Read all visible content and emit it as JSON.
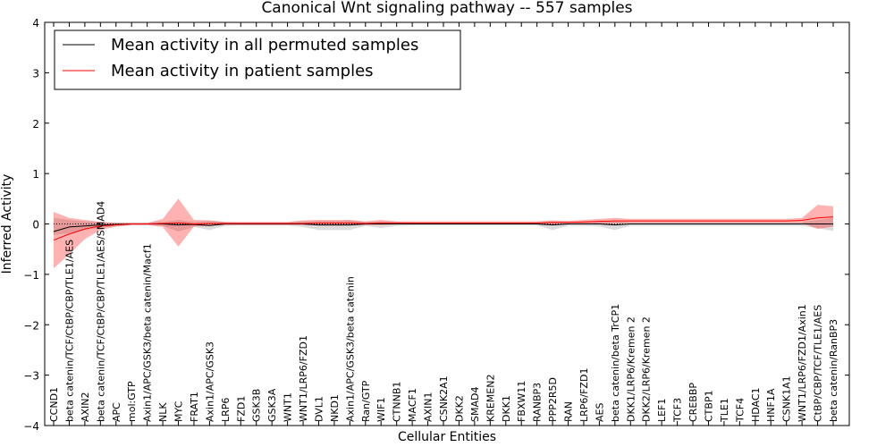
{
  "chart_data": {
    "type": "line",
    "title": "Canonical Wnt signaling pathway -- 557 samples",
    "xlabel": "Cellular Entities",
    "ylabel": "Inferred Activity",
    "ylim": [
      -4,
      4
    ],
    "yticks": [
      -4,
      -3,
      -2,
      -1,
      0,
      1,
      2,
      3,
      4
    ],
    "legend_position": "top-left",
    "categories": [
      "CCND1",
      "beta catenin/TCF/CtBP/CBP/TLE1/AES",
      "AXIN2",
      "beta catenin/TCF/CtBP/CBP/TLE1/AES/SMAD4",
      "APC",
      "mol:GTP",
      "Axin1/APC/GSK3/beta catenin/Macf1",
      "NLK",
      "MYC",
      "FRAT1",
      "Axin1/APC/GSK3",
      "LRP6",
      "FZD1",
      "GSK3B",
      "GSK3A",
      "WNT1",
      "WNT1/LRP6/FZD1",
      "DVL1",
      "NKD1",
      "Axin1/APC/GSK3/beta catenin",
      "Ran/GTP",
      "WIF1",
      "CTNNB1",
      "MACF1",
      "AXIN1",
      "CSNK2A1",
      "DKK2",
      "SMAD4",
      "KREMEN2",
      "DKK1",
      "FBXW11",
      "RANBP3",
      "PPP2R5D",
      "RAN",
      "LRP6/FZD1",
      "AES",
      "beta catenin/beta TrCP1",
      "DKK1/LRP6/Kremen 2",
      "DKK2/LRP6/Kremen 2",
      "LEF1",
      "TCF3",
      "CREBBP",
      "CTBP1",
      "TLE1",
      "TCF4",
      "HDAC1",
      "HNF1A",
      "CSNK1A1",
      "WNT1/LRP6/FZD1/Axin1",
      "CtBP/CBP/TCF/TLE1/AES",
      "beta catenin/RanBP3"
    ],
    "series": [
      {
        "name": "Mean activity in all permuted samples",
        "color": "#000000",
        "values": [
          -0.15,
          -0.06,
          -0.04,
          -0.02,
          -0.01,
          0.0,
          0.0,
          0.0,
          -0.02,
          -0.01,
          -0.03,
          0.0,
          0.0,
          0.0,
          0.0,
          0.0,
          0.0,
          -0.02,
          -0.02,
          -0.02,
          0.0,
          0.0,
          0.0,
          0.0,
          0.0,
          0.0,
          0.0,
          0.0,
          0.0,
          0.0,
          0.0,
          0.0,
          -0.02,
          0.0,
          0.0,
          0.0,
          -0.02,
          0.0,
          0.0,
          0.0,
          0.0,
          0.0,
          0.0,
          0.0,
          0.0,
          0.0,
          0.0,
          0.0,
          0.0,
          0.0,
          0.0
        ],
        "lower": [
          -0.22,
          -0.18,
          -0.12,
          -0.08,
          -0.05,
          -0.03,
          -0.03,
          -0.04,
          -0.15,
          -0.06,
          -0.12,
          -0.04,
          -0.03,
          -0.03,
          -0.03,
          -0.03,
          -0.06,
          -0.12,
          -0.12,
          -0.12,
          -0.04,
          -0.08,
          -0.04,
          -0.03,
          -0.03,
          -0.03,
          -0.03,
          -0.03,
          -0.03,
          -0.03,
          -0.03,
          -0.03,
          -0.12,
          -0.04,
          -0.04,
          -0.05,
          -0.12,
          -0.04,
          -0.04,
          -0.04,
          -0.04,
          -0.04,
          -0.04,
          -0.04,
          -0.04,
          -0.04,
          -0.04,
          -0.04,
          -0.04,
          -0.08,
          -0.14
        ],
        "upper": [
          0.12,
          0.08,
          0.05,
          0.04,
          0.03,
          0.03,
          0.03,
          0.04,
          0.08,
          0.04,
          0.06,
          0.04,
          0.03,
          0.03,
          0.03,
          0.03,
          0.05,
          0.06,
          0.06,
          0.07,
          0.04,
          0.05,
          0.04,
          0.03,
          0.03,
          0.03,
          0.03,
          0.03,
          0.03,
          0.03,
          0.03,
          0.03,
          0.05,
          0.04,
          0.04,
          0.05,
          0.05,
          0.04,
          0.04,
          0.04,
          0.04,
          0.04,
          0.04,
          0.04,
          0.04,
          0.04,
          0.04,
          0.04,
          0.04,
          0.08,
          0.12
        ]
      },
      {
        "name": "Mean activity in patient samples",
        "color": "#ff0000",
        "values": [
          -0.32,
          -0.2,
          -0.1,
          -0.04,
          -0.02,
          0.0,
          0.0,
          0.01,
          0.02,
          0.0,
          0.01,
          0.01,
          0.01,
          0.01,
          0.01,
          0.01,
          0.01,
          0.02,
          0.02,
          0.02,
          0.01,
          0.02,
          0.02,
          0.02,
          0.02,
          0.02,
          0.02,
          0.02,
          0.02,
          0.02,
          0.02,
          0.02,
          0.03,
          0.03,
          0.04,
          0.05,
          0.06,
          0.06,
          0.06,
          0.06,
          0.06,
          0.06,
          0.06,
          0.06,
          0.06,
          0.06,
          0.06,
          0.06,
          0.07,
          0.12,
          0.14
        ],
        "lower": [
          -0.88,
          -0.6,
          -0.3,
          -0.12,
          -0.05,
          -0.02,
          -0.02,
          -0.06,
          -0.45,
          -0.05,
          -0.04,
          -0.02,
          -0.02,
          -0.02,
          -0.02,
          -0.02,
          -0.02,
          -0.03,
          -0.03,
          -0.03,
          -0.02,
          -0.02,
          -0.01,
          -0.01,
          -0.01,
          -0.01,
          -0.01,
          -0.01,
          -0.01,
          -0.01,
          -0.01,
          -0.01,
          -0.02,
          0.0,
          0.0,
          0.0,
          0.0,
          0.02,
          0.02,
          0.02,
          0.02,
          0.02,
          0.02,
          0.02,
          0.02,
          0.02,
          0.02,
          0.02,
          0.02,
          -0.1,
          -0.05
        ],
        "upper": [
          0.24,
          0.12,
          0.08,
          0.04,
          0.02,
          0.02,
          0.02,
          0.1,
          0.5,
          0.08,
          0.07,
          0.04,
          0.04,
          0.04,
          0.04,
          0.04,
          0.07,
          0.08,
          0.08,
          0.08,
          0.05,
          0.08,
          0.05,
          0.05,
          0.05,
          0.05,
          0.05,
          0.05,
          0.05,
          0.05,
          0.05,
          0.05,
          0.07,
          0.06,
          0.08,
          0.1,
          0.12,
          0.1,
          0.1,
          0.1,
          0.1,
          0.1,
          0.1,
          0.1,
          0.1,
          0.1,
          0.1,
          0.1,
          0.12,
          0.38,
          0.35
        ]
      }
    ]
  }
}
